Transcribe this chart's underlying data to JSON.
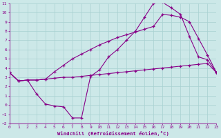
{
  "bg_color": "#cce8e8",
  "grid_color": "#a8d0d0",
  "line_color": "#880088",
  "xlabel": "Windchill (Refroidissement éolien,°C)",
  "xlim": [
    0,
    23
  ],
  "ylim": [
    -2,
    11
  ],
  "xticks": [
    0,
    1,
    2,
    3,
    4,
    5,
    6,
    7,
    8,
    9,
    10,
    11,
    12,
    13,
    14,
    15,
    16,
    17,
    18,
    19,
    20,
    21,
    22,
    23
  ],
  "yticks": [
    -2,
    -1,
    0,
    1,
    2,
    3,
    4,
    5,
    6,
    7,
    8,
    9,
    10,
    11
  ],
  "curve1_x": [
    0,
    1,
    2,
    3,
    4,
    5,
    6,
    7,
    8,
    9,
    10,
    11,
    12,
    13,
    14,
    15,
    16,
    17,
    18,
    19,
    20,
    21,
    22,
    23
  ],
  "curve1_y": [
    3.5,
    2.6,
    2.7,
    2.7,
    2.8,
    2.9,
    3.0,
    3.0,
    3.1,
    3.2,
    3.3,
    3.4,
    3.5,
    3.6,
    3.7,
    3.8,
    3.9,
    4.0,
    4.1,
    4.2,
    4.3,
    4.4,
    4.5,
    3.5
  ],
  "curve2_x": [
    0,
    1,
    2,
    3,
    4,
    5,
    6,
    7,
    8,
    9,
    10,
    11,
    12,
    13,
    14,
    15,
    16,
    17,
    18,
    19,
    20,
    21,
    22,
    23
  ],
  "curve2_y": [
    3.5,
    2.6,
    2.7,
    1.2,
    0.1,
    -0.1,
    -0.2,
    -1.4,
    -1.4,
    3.1,
    3.8,
    5.2,
    6.0,
    7.0,
    8.0,
    9.5,
    11.0,
    11.1,
    10.5,
    9.8,
    7.4,
    5.2,
    4.9,
    3.5
  ],
  "curve3_x": [
    0,
    1,
    2,
    3,
    4,
    5,
    6,
    7,
    8,
    9,
    10,
    11,
    12,
    13,
    14,
    15,
    16,
    17,
    18,
    19,
    20,
    21,
    22,
    23
  ],
  "curve3_y": [
    3.5,
    2.6,
    2.7,
    2.7,
    2.8,
    3.6,
    4.3,
    5.0,
    5.5,
    6.0,
    6.5,
    6.9,
    7.3,
    7.6,
    7.9,
    8.2,
    8.5,
    9.8,
    9.7,
    9.5,
    9.0,
    7.2,
    5.4,
    3.5
  ],
  "figsize": [
    3.2,
    2.0
  ],
  "dpi": 100,
  "tick_labelsize": 4.5,
  "xlabel_fontsize": 5.2,
  "lw": 0.8,
  "ms": 2.5,
  "mew": 0.9
}
